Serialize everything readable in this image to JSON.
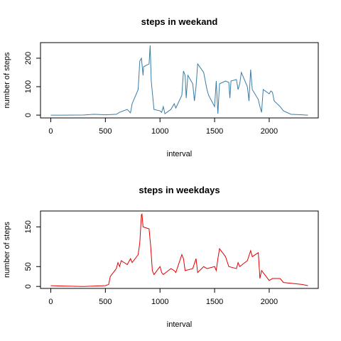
{
  "chart_data": [
    {
      "type": "line",
      "title": "steps in weekand",
      "x_label": "interval",
      "y_label": "number of steps",
      "color": "#3a7ca5",
      "x": [
        0,
        100,
        300,
        400,
        500,
        600,
        630,
        700,
        730,
        745,
        800,
        815,
        830,
        845,
        850,
        900,
        910,
        920,
        935,
        945,
        1000,
        1015,
        1030,
        1045,
        1100,
        1130,
        1145,
        1200,
        1215,
        1230,
        1240,
        1255,
        1300,
        1315,
        1330,
        1345,
        1400,
        1415,
        1430,
        1445,
        1500,
        1515,
        1530,
        1545,
        1600,
        1630,
        1640,
        1650,
        1700,
        1715,
        1730,
        1745,
        1800,
        1815,
        1830,
        1845,
        1900,
        1915,
        1930,
        1945,
        2000,
        2015,
        2030,
        2045,
        2100,
        2130,
        2200,
        2300,
        2355
      ],
      "values": [
        0,
        0,
        0.5,
        3,
        1,
        3,
        10,
        20,
        8,
        40,
        90,
        190,
        200,
        140,
        170,
        180,
        245,
        120,
        60,
        20,
        15,
        10,
        30,
        5,
        20,
        40,
        25,
        70,
        155,
        140,
        60,
        140,
        110,
        50,
        100,
        180,
        150,
        120,
        90,
        70,
        30,
        120,
        5,
        110,
        120,
        115,
        60,
        120,
        125,
        90,
        110,
        150,
        100,
        50,
        160,
        90,
        55,
        30,
        10,
        90,
        75,
        85,
        80,
        50,
        30,
        15,
        3,
        1,
        0
      ],
      "xlim": [
        -94.2,
        2449.2
      ],
      "ylim": [
        -9.8,
        254.8
      ],
      "xticks": [
        0,
        500,
        1000,
        1500,
        2000
      ],
      "yticks": [
        0,
        100,
        200
      ]
    },
    {
      "type": "line",
      "title": "steps in weekdays",
      "x_label": "interval",
      "y_label": "number of steps",
      "color": "#e00000",
      "x": [
        0,
        100,
        300,
        500,
        530,
        545,
        600,
        615,
        630,
        645,
        700,
        730,
        745,
        800,
        815,
        830,
        835,
        845,
        900,
        915,
        930,
        945,
        1000,
        1015,
        1030,
        1100,
        1130,
        1145,
        1200,
        1215,
        1230,
        1300,
        1330,
        1345,
        1400,
        1430,
        1500,
        1515,
        1530,
        1545,
        1600,
        1630,
        1700,
        1715,
        1730,
        1800,
        1830,
        1845,
        1900,
        1915,
        1930,
        2000,
        2030,
        2100,
        2130,
        2200,
        2300,
        2355
      ],
      "values": [
        2,
        1,
        0,
        2,
        5,
        25,
        45,
        60,
        50,
        65,
        55,
        70,
        60,
        80,
        110,
        180,
        182,
        150,
        145,
        100,
        40,
        30,
        50,
        35,
        30,
        45,
        40,
        35,
        80,
        70,
        40,
        45,
        70,
        35,
        50,
        45,
        50,
        40,
        70,
        95,
        75,
        50,
        45,
        60,
        50,
        65,
        90,
        75,
        85,
        20,
        40,
        15,
        20,
        20,
        10,
        8,
        5,
        2
      ],
      "xlim": [
        -94.2,
        2449.2
      ],
      "ylim": [
        -5,
        190
      ],
      "xticks": [
        0,
        500,
        1000,
        1500,
        2000
      ],
      "yticks": [
        0,
        50,
        150
      ]
    }
  ]
}
